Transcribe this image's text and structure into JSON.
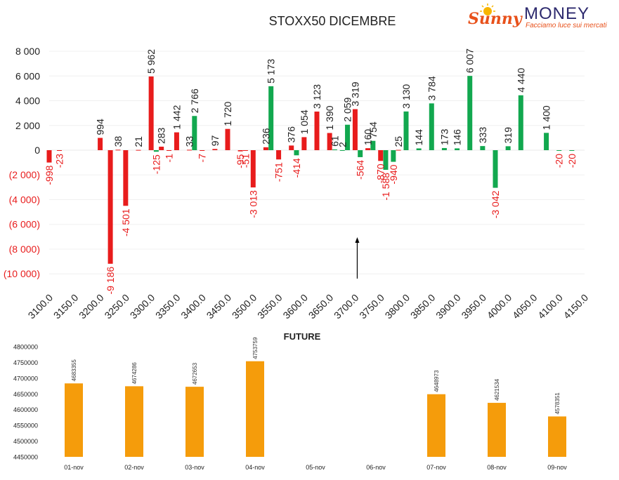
{
  "logo": {
    "sunny": "Sunny",
    "money": "MONEY",
    "tagline": "Facciamo luce sui mercati"
  },
  "chart_data": [
    {
      "type": "bar",
      "title": "STOXX50 DICEMBRE",
      "ylim": [
        -10000,
        8000
      ],
      "y_ticks": [
        8000,
        6000,
        4000,
        2000,
        0,
        -2000,
        -4000,
        -6000,
        -8000,
        -10000
      ],
      "y_tick_labels": [
        "8 000",
        "6 000",
        "4 000",
        "2 000",
        "0",
        "(2 000)",
        "(4 000)",
        "(6 000)",
        "(8 000)",
        "(10 000)"
      ],
      "x_tick_labels": [
        "3100.0",
        "3150.0",
        "3200.0",
        "3250.0",
        "3300.0",
        "3350.0",
        "3400.0",
        "3450.0",
        "3500.0",
        "3550.0",
        "3600.0",
        "3650.0",
        "3700.0",
        "3750.0",
        "3800.0",
        "3850.0",
        "3900.0",
        "3950.0",
        "4000.0",
        "4050.0",
        "4100.0",
        "4150.0"
      ],
      "grid": true,
      "annotations": [
        {
          "type": "arrow",
          "x": "3700.0",
          "direction": "up"
        }
      ],
      "colors": {
        "red": "#e81c1c",
        "green": "#12a84f",
        "positive_label": "#222222",
        "negative_label": "#e81c1c"
      },
      "series": [
        {
          "color": "red",
          "values": [
            -998,
            null,
            994,
            -9186,
            -4501,
            5962,
            1442,
            33,
            97,
            1720,
            -3013,
            -751,
            1054,
            3123,
            1390,
            3319,
            160,
            -870,
            25,
            null,
            null,
            null,
            null,
            null,
            null,
            null,
            null
          ]
        },
        {
          "color": "green",
          "values": [
            null,
            -23,
            null,
            38,
            21,
            -125,
            283,
            -1,
            2766,
            -7,
            -95,
            236,
            5173,
            376,
            -414,
            61,
            2,
            2059,
            -564,
            754,
            -1588,
            -940,
            3130,
            144,
            3784,
            173,
            146,
            6007,
            333,
            -3042,
            319,
            4440,
            1400,
            -20,
            -20
          ]
        }
      ],
      "bars": [
        {
          "x": 3100,
          "value": -998,
          "color": "red"
        },
        {
          "x": 3120,
          "value": -23,
          "color": "red"
        },
        {
          "x": 3200,
          "value": 994,
          "color": "red"
        },
        {
          "x": 3220,
          "value": -9186,
          "color": "red"
        },
        {
          "x": 3235,
          "value": 38,
          "color": "red"
        },
        {
          "x": 3250,
          "value": -4501,
          "color": "red"
        },
        {
          "x": 3275,
          "value": 21,
          "color": "red"
        },
        {
          "x": 3300,
          "value": 5962,
          "color": "red"
        },
        {
          "x": 3310,
          "value": -125,
          "color": "green"
        },
        {
          "x": 3320,
          "value": 283,
          "color": "red"
        },
        {
          "x": 3335,
          "value": -1,
          "color": "red"
        },
        {
          "x": 3350,
          "value": 1442,
          "color": "red"
        },
        {
          "x": 3375,
          "value": 33,
          "color": "red"
        },
        {
          "x": 3385,
          "value": 2766,
          "color": "green"
        },
        {
          "x": 3400,
          "value": -7,
          "color": "red"
        },
        {
          "x": 3425,
          "value": 97,
          "color": "red"
        },
        {
          "x": 3450,
          "value": 1720,
          "color": "red"
        },
        {
          "x": 3475,
          "value": -95,
          "color": "red"
        },
        {
          "x": 3485,
          "value": -51,
          "color": "red"
        },
        {
          "x": 3500,
          "value": -3013,
          "color": "red"
        },
        {
          "x": 3525,
          "value": 236,
          "color": "red"
        },
        {
          "x": 3535,
          "value": 5173,
          "color": "green"
        },
        {
          "x": 3550,
          "value": -751,
          "color": "red"
        },
        {
          "x": 3575,
          "value": 376,
          "color": "red"
        },
        {
          "x": 3585,
          "value": -414,
          "color": "green"
        },
        {
          "x": 3600,
          "value": 1054,
          "color": "red"
        },
        {
          "x": 3625,
          "value": 3123,
          "color": "red"
        },
        {
          "x": 3650,
          "value": 1390,
          "color": "red"
        },
        {
          "x": 3660,
          "value": 61,
          "color": "green"
        },
        {
          "x": 3675,
          "value": 2,
          "color": "green"
        },
        {
          "x": 3685,
          "value": 2059,
          "color": "green"
        },
        {
          "x": 3700,
          "value": 3319,
          "color": "red"
        },
        {
          "x": 3710,
          "value": -564,
          "color": "green"
        },
        {
          "x": 3725,
          "value": 160,
          "color": "red"
        },
        {
          "x": 3735,
          "value": 754,
          "color": "green"
        },
        {
          "x": 3750,
          "value": -870,
          "color": "red"
        },
        {
          "x": 3760,
          "value": -1588,
          "color": "green"
        },
        {
          "x": 3775,
          "value": -940,
          "color": "green"
        },
        {
          "x": 3785,
          "value": 25,
          "color": "red"
        },
        {
          "x": 3800,
          "value": 3130,
          "color": "green"
        },
        {
          "x": 3825,
          "value": 144,
          "color": "green"
        },
        {
          "x": 3850,
          "value": 3784,
          "color": "green"
        },
        {
          "x": 3875,
          "value": 173,
          "color": "green"
        },
        {
          "x": 3900,
          "value": 146,
          "color": "green"
        },
        {
          "x": 3925,
          "value": 6007,
          "color": "green"
        },
        {
          "x": 3950,
          "value": 333,
          "color": "green"
        },
        {
          "x": 3975,
          "value": -3042,
          "color": "green"
        },
        {
          "x": 4000,
          "value": 319,
          "color": "green"
        },
        {
          "x": 4025,
          "value": 4440,
          "color": "green"
        },
        {
          "x": 4075,
          "value": 1400,
          "color": "green"
        },
        {
          "x": 4100,
          "value": -20,
          "color": "green"
        },
        {
          "x": 4125,
          "value": -20,
          "color": "green"
        }
      ]
    },
    {
      "type": "bar",
      "title": "FUTURE",
      "ylim": [
        4450000,
        4800000
      ],
      "y_ticks": [
        4800000,
        4750000,
        4700000,
        4650000,
        4600000,
        4550000,
        4500000,
        4450000
      ],
      "y_tick_labels": [
        "4800000",
        "4750000",
        "4700000",
        "4650000",
        "4600000",
        "4550000",
        "4500000",
        "4450000"
      ],
      "categories": [
        "01-nov",
        "02-nov",
        "03-nov",
        "04-nov",
        "05-nov",
        "06-nov",
        "07-nov",
        "08-nov",
        "09-nov"
      ],
      "values": [
        4683355,
        4674286,
        4672653,
        4753759,
        null,
        null,
        4648973,
        4621534,
        4578351
      ],
      "value_labels": [
        "4683355",
        "4674286",
        "4672653",
        "4753759",
        "",
        "",
        "4648973",
        "4621534",
        "4578351"
      ],
      "color": "#f59c0b",
      "grid": false
    }
  ]
}
